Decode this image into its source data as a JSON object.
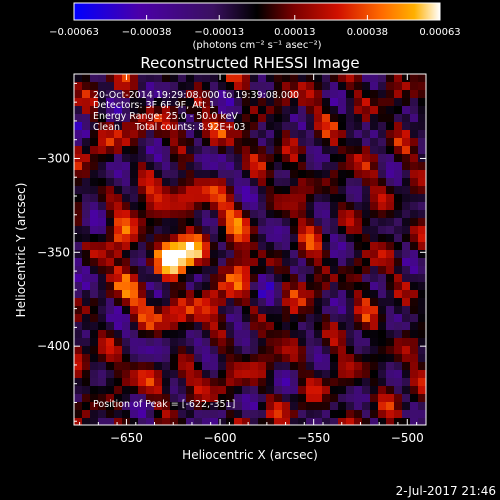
{
  "chart_data": {
    "type": "heatmap",
    "title": "Reconstructed RHESSI Image",
    "xlabel": "Heliocentric X (arcsec)",
    "ylabel": "Heliocentric Y (arcsec)",
    "xlim": [
      -678,
      -490
    ],
    "ylim": [
      -442,
      -255
    ],
    "x_ticks": [
      -650,
      -600,
      -550,
      -500
    ],
    "y_ticks": [
      -300,
      -350,
      -400
    ],
    "x_tick_labels": [
      "−650",
      "−600",
      "−550",
      "−500"
    ],
    "y_tick_labels": [
      "−300",
      "−350",
      "−400"
    ],
    "colorbar": {
      "range": [
        -0.00063,
        0.00063
      ],
      "ticks": [
        -0.00063,
        -0.00038,
        -0.00013,
        0.00013,
        0.00038,
        0.00063
      ],
      "tick_labels": [
        "−0.00063",
        "−0.00038",
        "−0.00013",
        "0.00013",
        "0.00038",
        "0.00063"
      ],
      "label": "(photons cm⁻² s⁻¹ asec⁻²)",
      "colors": [
        "#0000ff",
        "#4b00a8",
        "#3a1060",
        "#000000",
        "#7a0000",
        "#d01000",
        "#ff6a00",
        "#ffb000",
        "#ffffff"
      ]
    },
    "annotations": [
      "20-Oct-2014 19:29:08.000 to 19:39:08.000",
      "Detectors: 3F 6F 9F, Att 1",
      "Energy Range: 25.0 - 50.0 keV",
      "Clean     Total counts: 8.92E+03"
    ],
    "peak_label": "Position of Peak = [-622,-351]",
    "peak": [
      -622,
      -351
    ],
    "grid": false,
    "legend": "none"
  },
  "footer": {
    "timestamp": "2-Jul-2017 21:46"
  }
}
